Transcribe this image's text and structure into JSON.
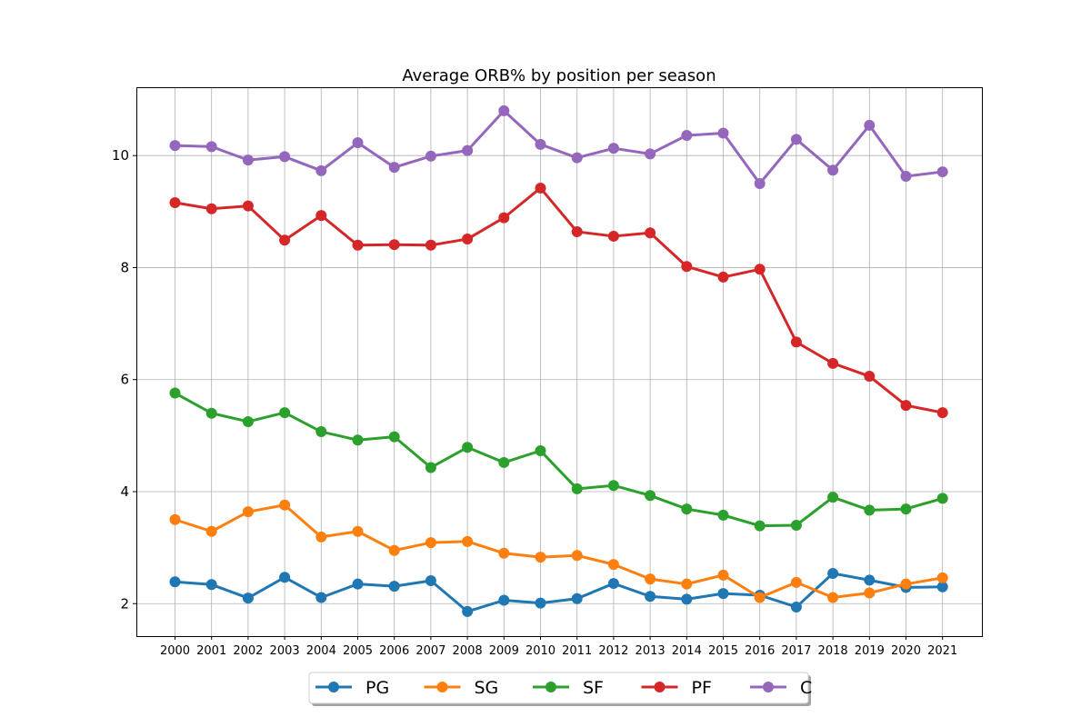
{
  "chart_data": {
    "type": "line",
    "title": "Average ORB% by position per season",
    "xlabel": "",
    "ylabel": "",
    "categories": [
      "2000",
      "2001",
      "2002",
      "2003",
      "2004",
      "2005",
      "2006",
      "2007",
      "2008",
      "2009",
      "2010",
      "2011",
      "2012",
      "2013",
      "2014",
      "2015",
      "2016",
      "2017",
      "2018",
      "2019",
      "2020",
      "2021"
    ],
    "ylim": [
      1.42,
      11.22
    ],
    "yticks": [
      2,
      4,
      6,
      8,
      10
    ],
    "grid": true,
    "legend_position": "bottom-center",
    "series": [
      {
        "name": "PG",
        "color": "#1f77b4",
        "values": [
          2.39,
          2.34,
          2.1,
          2.47,
          2.11,
          2.35,
          2.31,
          2.41,
          1.86,
          2.06,
          2.01,
          2.09,
          2.36,
          2.13,
          2.08,
          2.18,
          2.15,
          1.94,
          2.54,
          2.42,
          2.29,
          2.3
        ]
      },
      {
        "name": "SG",
        "color": "#ff7f0e",
        "values": [
          3.5,
          3.29,
          3.64,
          3.76,
          3.19,
          3.29,
          2.95,
          3.09,
          3.11,
          2.9,
          2.83,
          2.86,
          2.7,
          2.44,
          2.35,
          2.51,
          2.11,
          2.38,
          2.11,
          2.19,
          2.35,
          2.46
        ]
      },
      {
        "name": "SF",
        "color": "#2ca02c",
        "values": [
          5.76,
          5.4,
          5.25,
          5.41,
          5.07,
          4.92,
          4.98,
          4.43,
          4.79,
          4.52,
          4.73,
          4.05,
          4.11,
          3.93,
          3.69,
          3.58,
          3.39,
          3.4,
          3.9,
          3.67,
          3.69,
          3.88
        ]
      },
      {
        "name": "PF",
        "color": "#d62728",
        "values": [
          9.16,
          9.05,
          9.1,
          8.49,
          8.93,
          8.4,
          8.41,
          8.4,
          8.51,
          8.89,
          9.42,
          8.64,
          8.56,
          8.62,
          8.02,
          7.83,
          7.97,
          6.67,
          6.29,
          6.06,
          5.54,
          5.41
        ]
      },
      {
        "name": "C",
        "color": "#9467bd",
        "values": [
          10.18,
          10.16,
          9.92,
          9.98,
          9.73,
          10.23,
          9.79,
          9.99,
          10.09,
          10.8,
          10.2,
          9.96,
          10.13,
          10.03,
          10.36,
          10.4,
          9.5,
          10.29,
          9.74,
          10.54,
          9.63,
          9.71
        ]
      }
    ]
  }
}
